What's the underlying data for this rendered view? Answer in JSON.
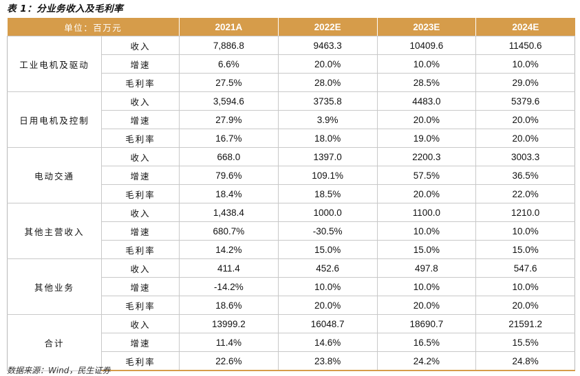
{
  "caption": "表 1：分业务收入及毛利率",
  "header": {
    "unit": "单位：百万元",
    "years": [
      "2021A",
      "2022E",
      "2023E",
      "2024E"
    ]
  },
  "segments": [
    {
      "name": "工业电机及驱动",
      "rows": [
        {
          "metric": "收入",
          "values": [
            "7,886.8",
            "9463.3",
            "10409.6",
            "11450.6"
          ]
        },
        {
          "metric": "增速",
          "values": [
            "6.6%",
            "20.0%",
            "10.0%",
            "10.0%"
          ]
        },
        {
          "metric": "毛利率",
          "values": [
            "27.5%",
            "28.0%",
            "28.5%",
            "29.0%"
          ]
        }
      ]
    },
    {
      "name": "日用电机及控制",
      "rows": [
        {
          "metric": "收入",
          "values": [
            "3,594.6",
            "3735.8",
            "4483.0",
            "5379.6"
          ]
        },
        {
          "metric": "增速",
          "values": [
            "27.9%",
            "3.9%",
            "20.0%",
            "20.0%"
          ]
        },
        {
          "metric": "毛利率",
          "values": [
            "16.7%",
            "18.0%",
            "19.0%",
            "20.0%"
          ]
        }
      ]
    },
    {
      "name": "电动交通",
      "rows": [
        {
          "metric": "收入",
          "values": [
            "668.0",
            "1397.0",
            "2200.3",
            "3003.3"
          ]
        },
        {
          "metric": "增速",
          "values": [
            "79.6%",
            "109.1%",
            "57.5%",
            "36.5%"
          ]
        },
        {
          "metric": "毛利率",
          "values": [
            "18.4%",
            "18.5%",
            "20.0%",
            "22.0%"
          ]
        }
      ]
    },
    {
      "name": "其他主营收入",
      "rows": [
        {
          "metric": "收入",
          "values": [
            "1,438.4",
            "1000.0",
            "1100.0",
            "1210.0"
          ]
        },
        {
          "metric": "增速",
          "values": [
            "680.7%",
            "-30.5%",
            "10.0%",
            "10.0%"
          ]
        },
        {
          "metric": "毛利率",
          "values": [
            "14.2%",
            "15.0%",
            "15.0%",
            "15.0%"
          ]
        }
      ]
    },
    {
      "name": "其他业务",
      "rows": [
        {
          "metric": "收入",
          "values": [
            "411.4",
            "452.6",
            "497.8",
            "547.6"
          ]
        },
        {
          "metric": "增速",
          "values": [
            "-14.2%",
            "10.0%",
            "10.0%",
            "10.0%"
          ]
        },
        {
          "metric": "毛利率",
          "values": [
            "18.6%",
            "20.0%",
            "20.0%",
            "20.0%"
          ]
        }
      ]
    },
    {
      "name": "合计",
      "rows": [
        {
          "metric": "收入",
          "values": [
            "13999.2",
            "16048.7",
            "18690.7",
            "21591.2"
          ]
        },
        {
          "metric": "增速",
          "values": [
            "11.4%",
            "14.6%",
            "16.5%",
            "15.5%"
          ]
        },
        {
          "metric": "毛利率",
          "values": [
            "22.6%",
            "23.8%",
            "24.2%",
            "24.8%"
          ]
        }
      ]
    }
  ],
  "source": "数据来源：Wind，民生证券",
  "colors": {
    "header_bg": "#d69c4a",
    "header_text": "#ffffff",
    "grid": "#c8c8c8"
  }
}
